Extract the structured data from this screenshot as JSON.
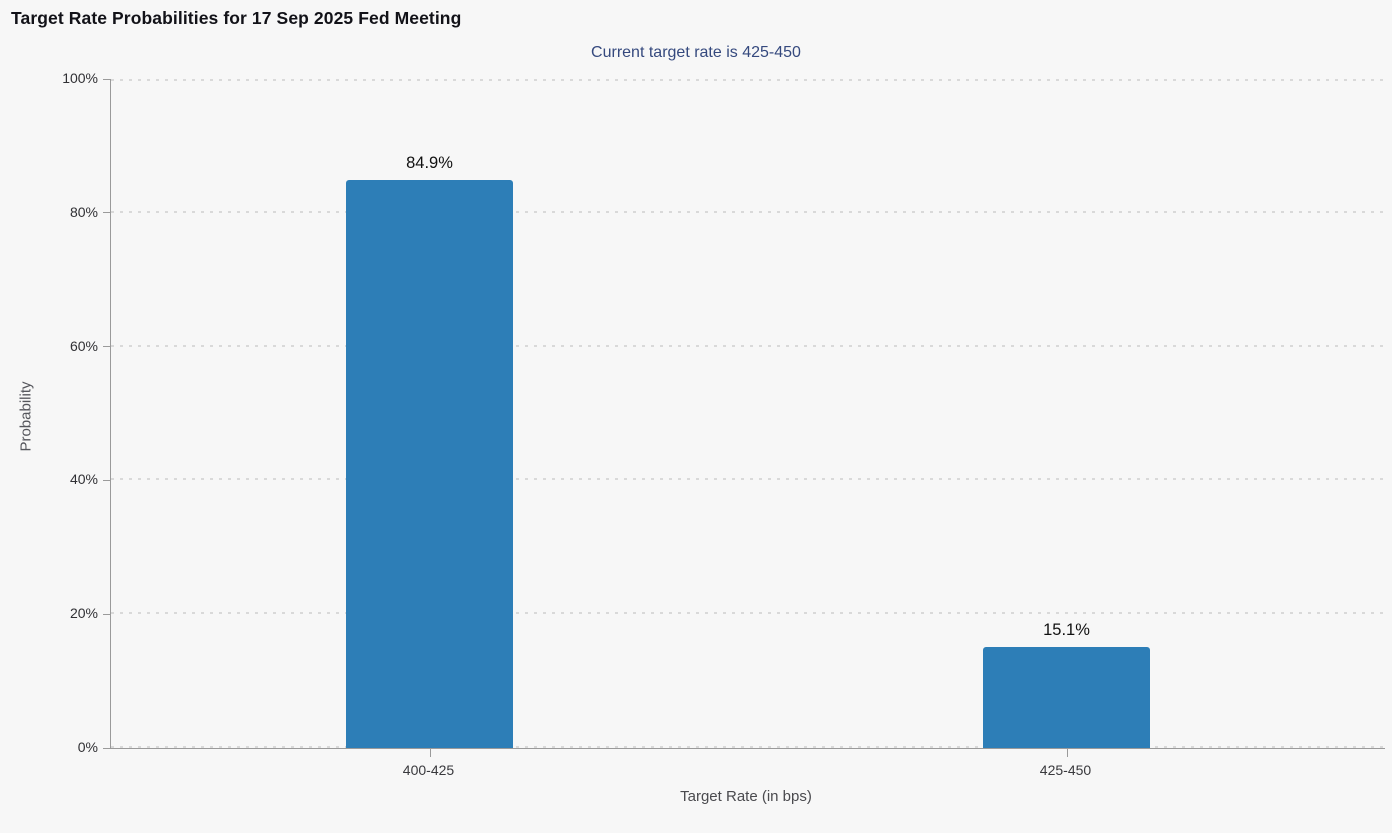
{
  "subtitle": "Current target rate is 425-450",
  "colors": {
    "background": "#f7f7f7",
    "bar": "#2d7eb7",
    "subtitle_text": "#35497e",
    "axis_line": "#9a9a9a",
    "gridline": "#d9d9d9",
    "title_text": "#121218"
  },
  "chart_data": {
    "type": "bar",
    "title": "Target Rate Probabilities for 17 Sep 2025 Fed Meeting",
    "subtitle": "Current target rate is 425-450",
    "categories": [
      "400-425",
      "425-450"
    ],
    "values": [
      84.9,
      15.1
    ],
    "value_labels": [
      "84.9%",
      "15.1%"
    ],
    "xlabel": "Target Rate (in bps)",
    "ylabel": "Probability",
    "ylim": [
      0,
      100
    ],
    "ytick_step": 20,
    "ytick_labels": [
      "0%",
      "20%",
      "40%",
      "60%",
      "80%",
      "100%"
    ],
    "grid": "horizontal-dotted",
    "legend": "none"
  }
}
